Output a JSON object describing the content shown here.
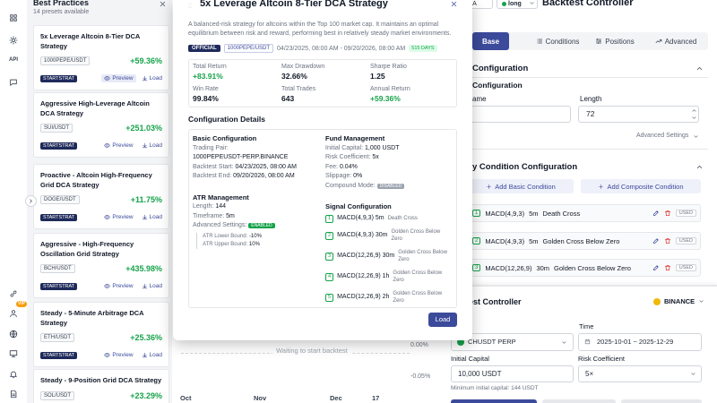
{
  "sidebar": {
    "api": "API",
    "vip": "VIP"
  },
  "presets": {
    "title": "Best Practices",
    "count": "14 presets available",
    "cards": [
      {
        "title": "5x Leverage Altcoin 8-Tier DCA Strategy",
        "pair": "1000PEPE/USDT",
        "return": "+59.36%",
        "tag": "STARTSTRAT",
        "preview": "Preview",
        "load": "Load"
      },
      {
        "title": "Aggressive High-Leverage Altcoin DCA Strategy",
        "pair": "SUI/USDT",
        "return": "+251.03%",
        "tag": "STARTSTRAT",
        "preview": "Preview",
        "load": "Load"
      },
      {
        "title": "Proactive - Altcoin High-Frequency Grid DCA Strategy",
        "pair": "DOGE/USDT",
        "return": "+11.75%",
        "tag": "STARTSTRAT",
        "preview": "Preview",
        "load": "Load"
      },
      {
        "title": "Aggressive - High-Frequency Oscillation Grid Strategy",
        "pair": "BCH/USDT",
        "return": "+435.98%",
        "tag": "STARTSTRAT",
        "preview": "Preview",
        "load": "Load"
      },
      {
        "title": "Steady - 5-Minute Arbitrage DCA Strategy",
        "pair": "ETH/USDT",
        "return": "+25.36%",
        "tag": "STARTSTRAT",
        "preview": "Preview",
        "load": "Load"
      },
      {
        "title": "Steady - 9-Position Grid DCA Strategy",
        "pair": "SOL/USDT",
        "return": "+23.29%"
      }
    ]
  },
  "modal": {
    "title": "5x Leverage Altcoin 8-Tier DCA Strategy",
    "description": "A balanced-risk strategy for altcoins within the Top 100 market cap. It maintains an optimal equilibrium between risk and reward, performing best in relatively steady market environments.",
    "badge": "OFFICIAL",
    "pair": "1000PEPE/USDT",
    "period": "04/23/2025, 08:00 AM - 09/20/2026, 08:00 AM",
    "days": "515 DAYS",
    "stats": [
      {
        "label": "Total Return",
        "value": "+83.91%"
      },
      {
        "label": "Max Drawdown",
        "value": "32.66%"
      },
      {
        "label": "Sharpe Ratio",
        "value": "1.25"
      },
      {
        "label": "Win Rate",
        "value": "99.84%"
      },
      {
        "label": "Total Trades",
        "value": "643"
      },
      {
        "label": "Annual Return",
        "value": "+59.36%"
      }
    ],
    "details_title": "Configuration Details",
    "basic": {
      "title": "Basic Configuration",
      "pair_label": "Trading Pair:",
      "pair_value": "1000PEPEUSDT-PERP.BINANCE",
      "rows": [
        {
          "label": "Backtest Start:",
          "value": "04/23/2025, 08:00 AM"
        },
        {
          "label": "Backtest End:",
          "value": "09/20/2026, 08:00 AM"
        }
      ]
    },
    "atr": {
      "title": "ATR Management",
      "rows": [
        {
          "label": "Length:",
          "value": "144"
        },
        {
          "label": "Timeframe:",
          "value": "5m"
        },
        {
          "label": "Advanced Settings:",
          "value": "ENABLED"
        }
      ],
      "bounds": [
        {
          "label": "ATR Lower Bound:",
          "value": "-10%"
        },
        {
          "label": "ATR Upper Bound:",
          "value": "10%"
        }
      ]
    },
    "fund": {
      "title": "Fund Management",
      "rows": [
        {
          "label": "Initial Capital:",
          "value": "1,000 USDT"
        },
        {
          "label": "Risk Coefficient:",
          "value": "5x"
        },
        {
          "label": "Fee:",
          "value": "0.04%"
        },
        {
          "label": "Slippage:",
          "value": "0%"
        },
        {
          "label": "Compound Mode:",
          "value": "DISABLED"
        }
      ]
    },
    "signals": {
      "title": "Signal Configuration",
      "items": [
        {
          "num": "1",
          "name": "MACD(4,9,3) 5m",
          "signal": "Death Cross"
        },
        {
          "num": "2",
          "name": "MACD(4,9,3) 30m",
          "signal": "Golden Cross Below Zero"
        },
        {
          "num": "3",
          "name": "MACD(12,26,9) 30m",
          "signal": "Golden Cross Below Zero"
        },
        {
          "num": "4",
          "name": "MACD(12,26,9) 1h",
          "signal": "Golden Cross Below Zero"
        },
        {
          "num": "5",
          "name": "MACD(12,26,9) 2h",
          "signal": "Golden Cross Below Zero"
        }
      ]
    },
    "load": "Load"
  },
  "chart": {
    "status": "Waiting to start backtest",
    "yticks": [
      "0.00%",
      "-0.05%"
    ],
    "xlabels": [
      "Oct",
      "Nov",
      "Dec",
      "17"
    ]
  },
  "right": {
    "top": {
      "mode": "DCA",
      "side": "long",
      "title": "Backtest Controller"
    },
    "tabs": [
      "Base",
      "Conditions",
      "Positions",
      "Advanced"
    ],
    "base": {
      "title": "Configuration",
      "subtitle": "Configuration",
      "name_label": "ame",
      "length_label": "Length",
      "length_value": "72",
      "advanced": "Advanced Settings"
    },
    "conditions": {
      "title": "y Condition Configuration",
      "add_basic": "Add Basic Condition",
      "add_composite": "Add Composite Condition",
      "rows": [
        {
          "num": "1",
          "indicator": "MACD(4,9,3)",
          "timeframe": "5m",
          "signal": "Death Cross",
          "status": "USED"
        },
        {
          "num": "2",
          "indicator": "MACD(4,9,3)",
          "timeframe": "5m",
          "signal": "Golden Cross Below Zero",
          "status": "USED"
        },
        {
          "num": "3",
          "indicator": "MACD(12,26,9)",
          "timeframe": "30m",
          "signal": "Golden Cross Below Zero",
          "status": "USED"
        }
      ]
    },
    "controller": {
      "title": "est Controller",
      "exchange": "BINANCE",
      "time_label": "Time",
      "symbol": "CHUSDT PERP",
      "time_range": "2025-10-01 ~ 2025-12-29",
      "capital_label": "Initial Capital",
      "capital_value": "10,000 USDT",
      "risk_label": "Risk Coefficient",
      "risk_value": "5×",
      "min_capital": "Minimum initial capital: 144 USDT"
    }
  }
}
